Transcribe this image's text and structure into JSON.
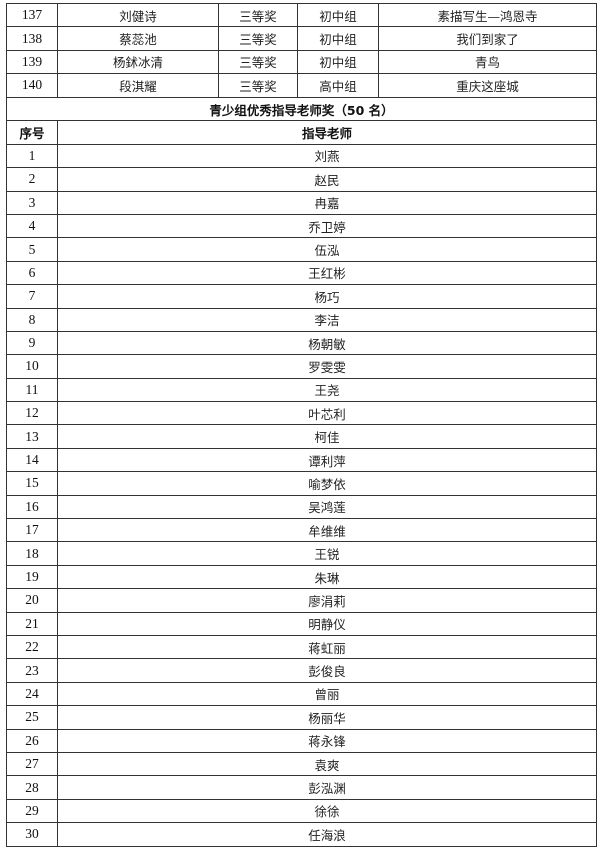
{
  "award_rows": [
    {
      "no": "137",
      "name": "刘健诗",
      "prize": "三等奖",
      "group": "初中组",
      "work": "素描写生—鸿恩寺"
    },
    {
      "no": "138",
      "name": "蔡蕊池",
      "prize": "三等奖",
      "group": "初中组",
      "work": "我们到家了"
    },
    {
      "no": "139",
      "name": "杨鉥冰清",
      "prize": "三等奖",
      "group": "初中组",
      "work": "青鸟"
    },
    {
      "no": "140",
      "name": "段淇耀",
      "prize": "三等奖",
      "group": "高中组",
      "work": "重庆这座城"
    }
  ],
  "teacher_section": {
    "title": "青少组优秀指导老师奖（50 名）",
    "headers": {
      "no": "序号",
      "teacher": "指导老师"
    },
    "rows": [
      {
        "no": "1",
        "teacher": "刘燕"
      },
      {
        "no": "2",
        "teacher": "赵民"
      },
      {
        "no": "3",
        "teacher": "冉嘉"
      },
      {
        "no": "4",
        "teacher": "乔卫婷"
      },
      {
        "no": "5",
        "teacher": "伍泓"
      },
      {
        "no": "6",
        "teacher": "王红彬"
      },
      {
        "no": "7",
        "teacher": "杨巧"
      },
      {
        "no": "8",
        "teacher": "李洁"
      },
      {
        "no": "9",
        "teacher": "杨朝敏"
      },
      {
        "no": "10",
        "teacher": "罗雯雯"
      },
      {
        "no": "11",
        "teacher": "王尧"
      },
      {
        "no": "12",
        "teacher": "叶芯利"
      },
      {
        "no": "13",
        "teacher": "柯佳"
      },
      {
        "no": "14",
        "teacher": "谭利萍"
      },
      {
        "no": "15",
        "teacher": "喻梦依"
      },
      {
        "no": "16",
        "teacher": "吴鸿莲"
      },
      {
        "no": "17",
        "teacher": "牟维维"
      },
      {
        "no": "18",
        "teacher": "王锐"
      },
      {
        "no": "19",
        "teacher": "朱琳"
      },
      {
        "no": "20",
        "teacher": "廖涓莉"
      },
      {
        "no": "21",
        "teacher": "明静仪"
      },
      {
        "no": "22",
        "teacher": "蒋虹丽"
      },
      {
        "no": "23",
        "teacher": "彭俊良"
      },
      {
        "no": "24",
        "teacher": "曾丽"
      },
      {
        "no": "25",
        "teacher": "杨丽华"
      },
      {
        "no": "26",
        "teacher": "蒋永锋"
      },
      {
        "no": "27",
        "teacher": "袁爽"
      },
      {
        "no": "28",
        "teacher": "彭泓渊"
      },
      {
        "no": "29",
        "teacher": "徐徐"
      },
      {
        "no": "30",
        "teacher": "任海浪"
      }
    ]
  }
}
